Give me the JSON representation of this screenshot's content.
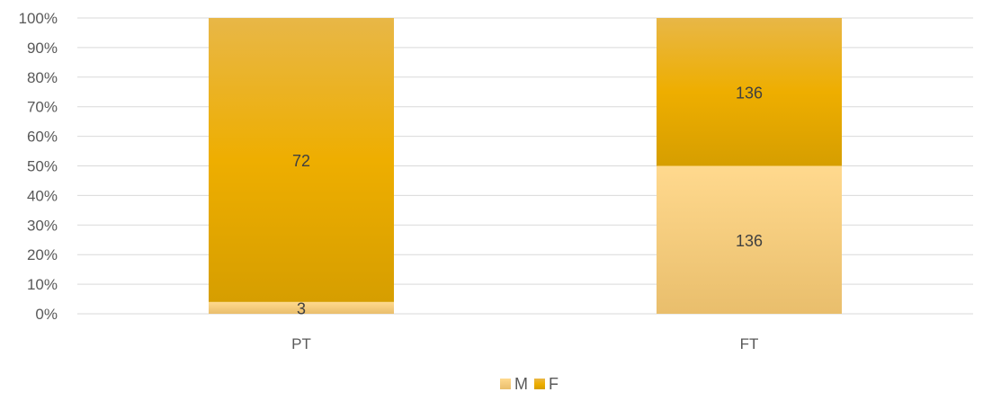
{
  "chart_data": {
    "type": "bar",
    "stacked": "percent",
    "categories": [
      "PT",
      "FT"
    ],
    "series": [
      {
        "name": "M",
        "values": [
          3,
          136
        ],
        "color": "#FDD68A"
      },
      {
        "name": "F",
        "values": [
          72,
          136
        ],
        "color": "#ECAE0A"
      }
    ],
    "y_ticks": [
      "0%",
      "10%",
      "20%",
      "30%",
      "40%",
      "50%",
      "60%",
      "70%",
      "80%",
      "90%",
      "100%"
    ],
    "ylim": [
      0,
      100
    ],
    "grid": true,
    "legend": "bottom",
    "gridColor": "#D9D9D9"
  }
}
